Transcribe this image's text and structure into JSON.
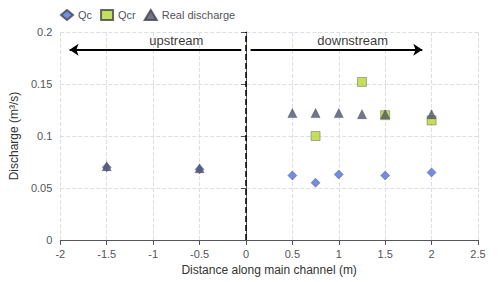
{
  "chart_data": {
    "type": "scatter",
    "xlabel": "Distance along main channel (m)",
    "ylabel": "Discharge (m³/s)",
    "series": [
      {
        "name": "Qc",
        "marker": "diamond",
        "x": [
          -1.5,
          -0.5,
          0.5,
          0.75,
          1.0,
          1.5,
          2.0
        ],
        "values": [
          0.07,
          0.068,
          0.062,
          0.055,
          0.063,
          0.062,
          0.065
        ]
      },
      {
        "name": "Qcr",
        "marker": "square",
        "x": [
          0.75,
          1.25,
          1.5,
          2.0
        ],
        "values": [
          0.1,
          0.152,
          0.12,
          0.115
        ]
      },
      {
        "name": "Real discharge",
        "marker": "triangle",
        "x": [
          -1.5,
          -0.5,
          0.5,
          0.75,
          1.0,
          1.25,
          1.5,
          2.0
        ],
        "values": [
          0.071,
          0.069,
          0.122,
          0.122,
          0.122,
          0.121,
          0.121,
          0.121
        ]
      }
    ],
    "vline": {
      "x": 0,
      "color": "#000000",
      "line_style": "dashed"
    },
    "annotations": [
      {
        "text": "upstream",
        "x": -0.75,
        "y": 0.192,
        "arrow": {
          "from": -0.05,
          "to": -1.9,
          "y": 0.183
        }
      },
      {
        "text": "downstream",
        "x": 1.15,
        "y": 0.192,
        "arrow": {
          "from": 0.05,
          "to": 1.9,
          "y": 0.183
        }
      }
    ],
    "xlim": [
      -2,
      2.5
    ],
    "ylim": [
      0,
      0.2
    ],
    "xticks": [
      -2,
      -1.5,
      -1,
      -0.5,
      0,
      0.5,
      1,
      1.5,
      2,
      2.5
    ],
    "yticks": [
      0,
      0.05,
      0.1,
      0.15,
      0.2
    ],
    "grid": true,
    "legend": "upper left"
  }
}
